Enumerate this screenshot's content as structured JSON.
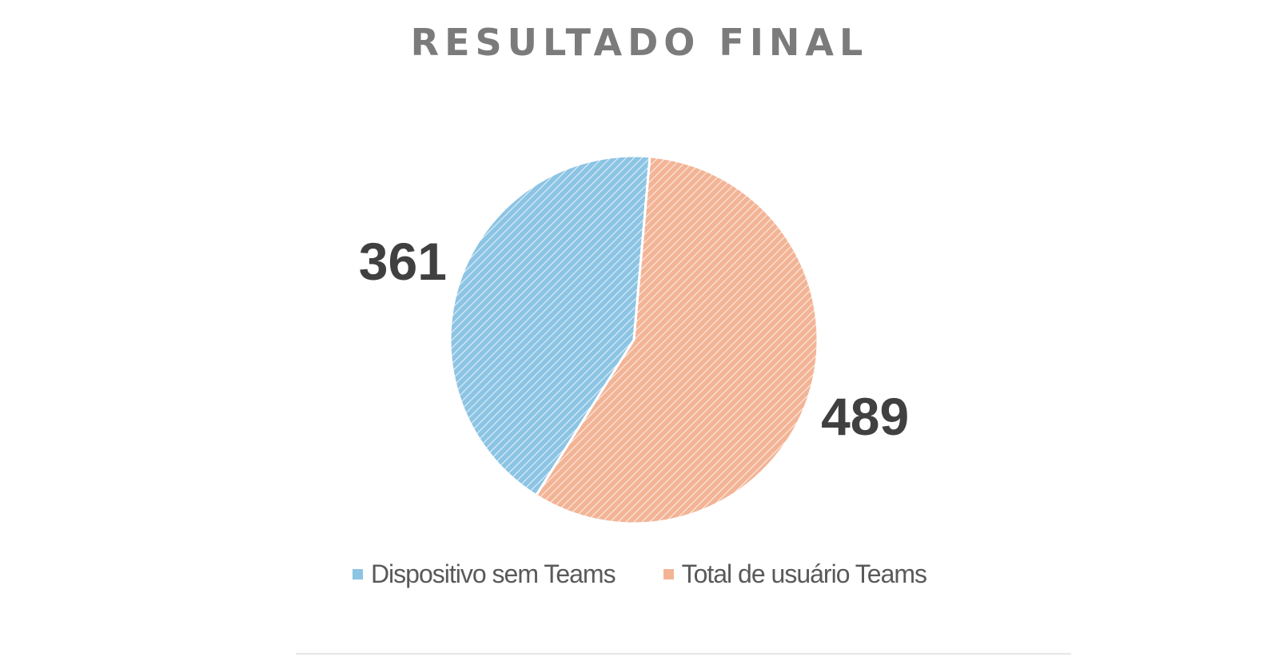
{
  "chart_data": {
    "type": "pie",
    "title": "RESULTADO FINAL",
    "categories": [
      "Dispositivo sem Teams",
      "Total de usuário Teams"
    ],
    "values": [
      361,
      489
    ],
    "colors": [
      "#8cc4e4",
      "#f3b496"
    ],
    "stripe_colors": [
      "#ffffff",
      "#ffffff"
    ],
    "legend": {
      "position": "bottom",
      "entries": [
        "Dispositivo sem Teams",
        "Total de usuário Teams"
      ]
    },
    "data_labels": [
      "361",
      "489"
    ]
  }
}
